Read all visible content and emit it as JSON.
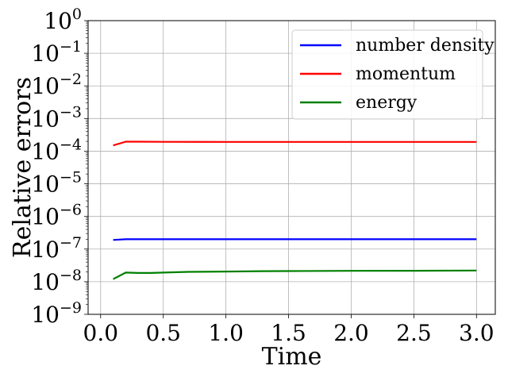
{
  "chart_data": {
    "type": "line",
    "xlabel": "Time",
    "ylabel": "Relative errors",
    "xlim": [
      -0.1,
      3.15
    ],
    "ylim": [
      1e-09,
      1
    ],
    "yscale": "log",
    "grid": true,
    "legend_position": "top-right",
    "xticks": [
      {
        "value": 0.0,
        "label": "0.0"
      },
      {
        "value": 0.5,
        "label": "0.5"
      },
      {
        "value": 1.0,
        "label": "1.0"
      },
      {
        "value": 1.5,
        "label": "1.5"
      },
      {
        "value": 2.0,
        "label": "2.0"
      },
      {
        "value": 2.5,
        "label": "2.5"
      },
      {
        "value": 3.0,
        "label": "3.0"
      }
    ],
    "yticks": [
      {
        "value": 1e-09,
        "base": "10",
        "exp": "−9"
      },
      {
        "value": 1e-08,
        "base": "10",
        "exp": "−8"
      },
      {
        "value": 1e-07,
        "base": "10",
        "exp": "−7"
      },
      {
        "value": 1e-06,
        "base": "10",
        "exp": "−6"
      },
      {
        "value": 1e-05,
        "base": "10",
        "exp": "−5"
      },
      {
        "value": 0.0001,
        "base": "10",
        "exp": "−4"
      },
      {
        "value": 0.001,
        "base": "10",
        "exp": "−3"
      },
      {
        "value": 0.01,
        "base": "10",
        "exp": "−2"
      },
      {
        "value": 0.1,
        "base": "10",
        "exp": "−1"
      },
      {
        "value": 1,
        "base": "10",
        "exp": "0"
      }
    ],
    "series": [
      {
        "name": "number density",
        "color": "#0000ff",
        "x": [
          0.1,
          0.2,
          0.3,
          0.5,
          1.0,
          1.5,
          2.0,
          2.5,
          3.0
        ],
        "y": [
          1.9e-07,
          2e-07,
          2e-07,
          2e-07,
          2e-07,
          2e-07,
          2e-07,
          2e-07,
          2e-07
        ]
      },
      {
        "name": "momentum",
        "color": "#ff0000",
        "x": [
          0.1,
          0.2,
          0.3,
          0.5,
          1.0,
          1.5,
          2.0,
          2.5,
          3.0
        ],
        "y": [
          0.00015,
          0.000195,
          0.000195,
          0.000193,
          0.000192,
          0.000192,
          0.000192,
          0.000192,
          0.000192
        ]
      },
      {
        "name": "energy",
        "color": "#008000",
        "x": [
          0.1,
          0.2,
          0.3,
          0.4,
          0.5,
          0.7,
          1.0,
          1.3,
          1.5,
          2.0,
          2.5,
          3.0
        ],
        "y": [
          1.2e-08,
          1.9e-08,
          1.85e-08,
          1.85e-08,
          1.9e-08,
          2e-08,
          2.05e-08,
          2.1e-08,
          2.12e-08,
          2.15e-08,
          2.17e-08,
          2.2e-08
        ]
      }
    ]
  }
}
